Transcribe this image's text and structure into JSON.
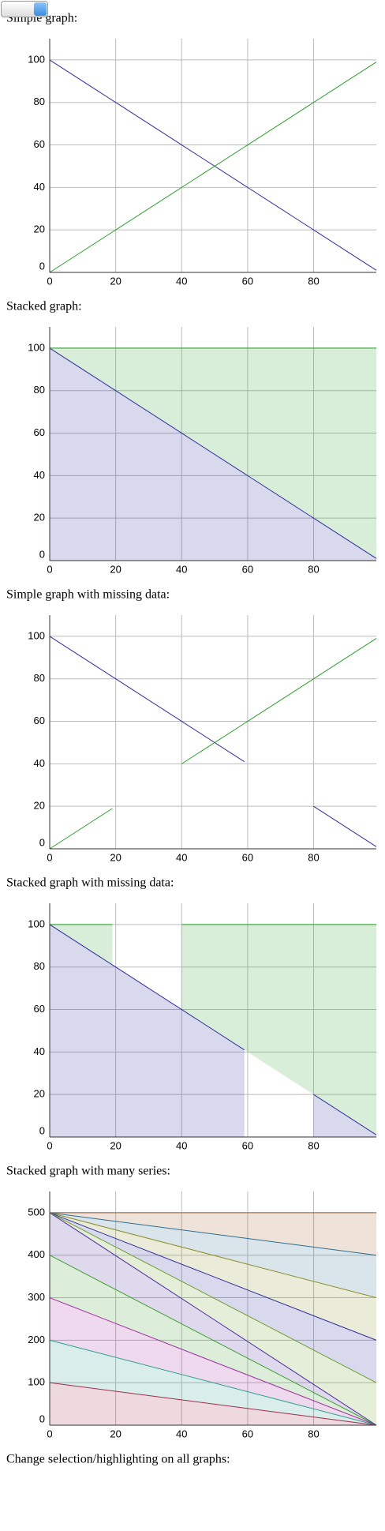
{
  "chart_data": [
    {
      "type": "line",
      "stacked": false,
      "title": "Simple graph:",
      "x": [
        0,
        19,
        20,
        39,
        40,
        59,
        60,
        79,
        80,
        99
      ],
      "xlim": [
        0,
        99
      ],
      "ylim": [
        0,
        110
      ],
      "xticks": [
        0,
        20,
        40,
        60,
        80
      ],
      "yticks": [
        0,
        20,
        40,
        60,
        80,
        100
      ],
      "grid": true,
      "series": [
        {
          "color": "#2e2e9e",
          "values": [
            100,
            81,
            80,
            61,
            60,
            41,
            40,
            21,
            20,
            1
          ]
        },
        {
          "color": "#2e9e2e",
          "values": [
            0,
            19,
            20,
            39,
            40,
            59,
            60,
            79,
            80,
            99
          ]
        }
      ]
    },
    {
      "type": "line",
      "stacked": true,
      "title": "Stacked graph:",
      "x": [
        0,
        19,
        20,
        39,
        40,
        59,
        60,
        79,
        80,
        99
      ],
      "xlim": [
        0,
        99
      ],
      "ylim": [
        0,
        110
      ],
      "xticks": [
        0,
        20,
        40,
        60,
        80
      ],
      "yticks": [
        0,
        20,
        40,
        60,
        80,
        100
      ],
      "grid": true,
      "series": [
        {
          "color": "#2e2e9e",
          "values": [
            100,
            81,
            80,
            61,
            60,
            41,
            40,
            21,
            20,
            1
          ]
        },
        {
          "color": "#2e9e2e",
          "values": [
            0,
            19,
            20,
            39,
            40,
            59,
            60,
            79,
            80,
            99
          ]
        }
      ]
    },
    {
      "type": "line",
      "stacked": false,
      "title": "Simple graph with missing data:",
      "x": [
        0,
        19,
        20,
        39,
        40,
        59,
        60,
        79,
        80,
        99
      ],
      "xlim": [
        0,
        99
      ],
      "ylim": [
        0,
        110
      ],
      "xticks": [
        0,
        20,
        40,
        60,
        80
      ],
      "yticks": [
        0,
        20,
        40,
        60,
        80,
        100
      ],
      "grid": true,
      "series": [
        {
          "color": "#2e2e9e",
          "values": [
            100,
            81,
            80,
            61,
            60,
            41,
            null,
            null,
            20,
            1
          ]
        },
        {
          "color": "#2e9e2e",
          "values": [
            0,
            19,
            null,
            null,
            40,
            59,
            60,
            79,
            80,
            99
          ]
        }
      ]
    },
    {
      "type": "line",
      "stacked": true,
      "title": "Stacked graph with missing data:",
      "x": [
        0,
        19,
        20,
        39,
        40,
        59,
        60,
        79,
        80,
        99
      ],
      "xlim": [
        0,
        99
      ],
      "ylim": [
        0,
        110
      ],
      "xticks": [
        0,
        20,
        40,
        60,
        80
      ],
      "yticks": [
        0,
        20,
        40,
        60,
        80,
        100
      ],
      "grid": true,
      "series": [
        {
          "color": "#2e2e9e",
          "values": [
            100,
            81,
            80,
            61,
            60,
            41,
            null,
            null,
            20,
            1
          ]
        },
        {
          "color": "#2e9e2e",
          "values": [
            0,
            19,
            null,
            null,
            40,
            59,
            60,
            79,
            80,
            99
          ]
        }
      ]
    },
    {
      "type": "line",
      "stacked": true,
      "title": "Stacked graph with many series:",
      "x": [
        0,
        99
      ],
      "xlim": [
        0,
        99
      ],
      "ylim": [
        0,
        550
      ],
      "xticks": [
        0,
        20,
        40,
        60,
        80
      ],
      "yticks": [
        0,
        100,
        200,
        300,
        400,
        500
      ],
      "grid": true,
      "series": [
        {
          "color": "#9e2e4e",
          "values": [
            100,
            0
          ]
        },
        {
          "color": "#2e9e8e",
          "values": [
            100,
            0
          ]
        },
        {
          "color": "#9e2e9e",
          "values": [
            100,
            0
          ]
        },
        {
          "color": "#3e9e2e",
          "values": [
            100,
            0
          ]
        },
        {
          "color": "#4e2e9e",
          "values": [
            100,
            0
          ]
        },
        {
          "color": "#6e9e2e",
          "values": [
            0,
            100
          ]
        },
        {
          "color": "#2e2e9e",
          "values": [
            0,
            100
          ]
        },
        {
          "color": "#8e8e2e",
          "values": [
            0,
            100
          ]
        },
        {
          "color": "#2e6e8e",
          "values": [
            0,
            100
          ]
        },
        {
          "color": "#9e5e2e",
          "values": [
            0,
            100
          ]
        }
      ]
    }
  ],
  "footer": "Change selection/highlighting on all graphs:"
}
